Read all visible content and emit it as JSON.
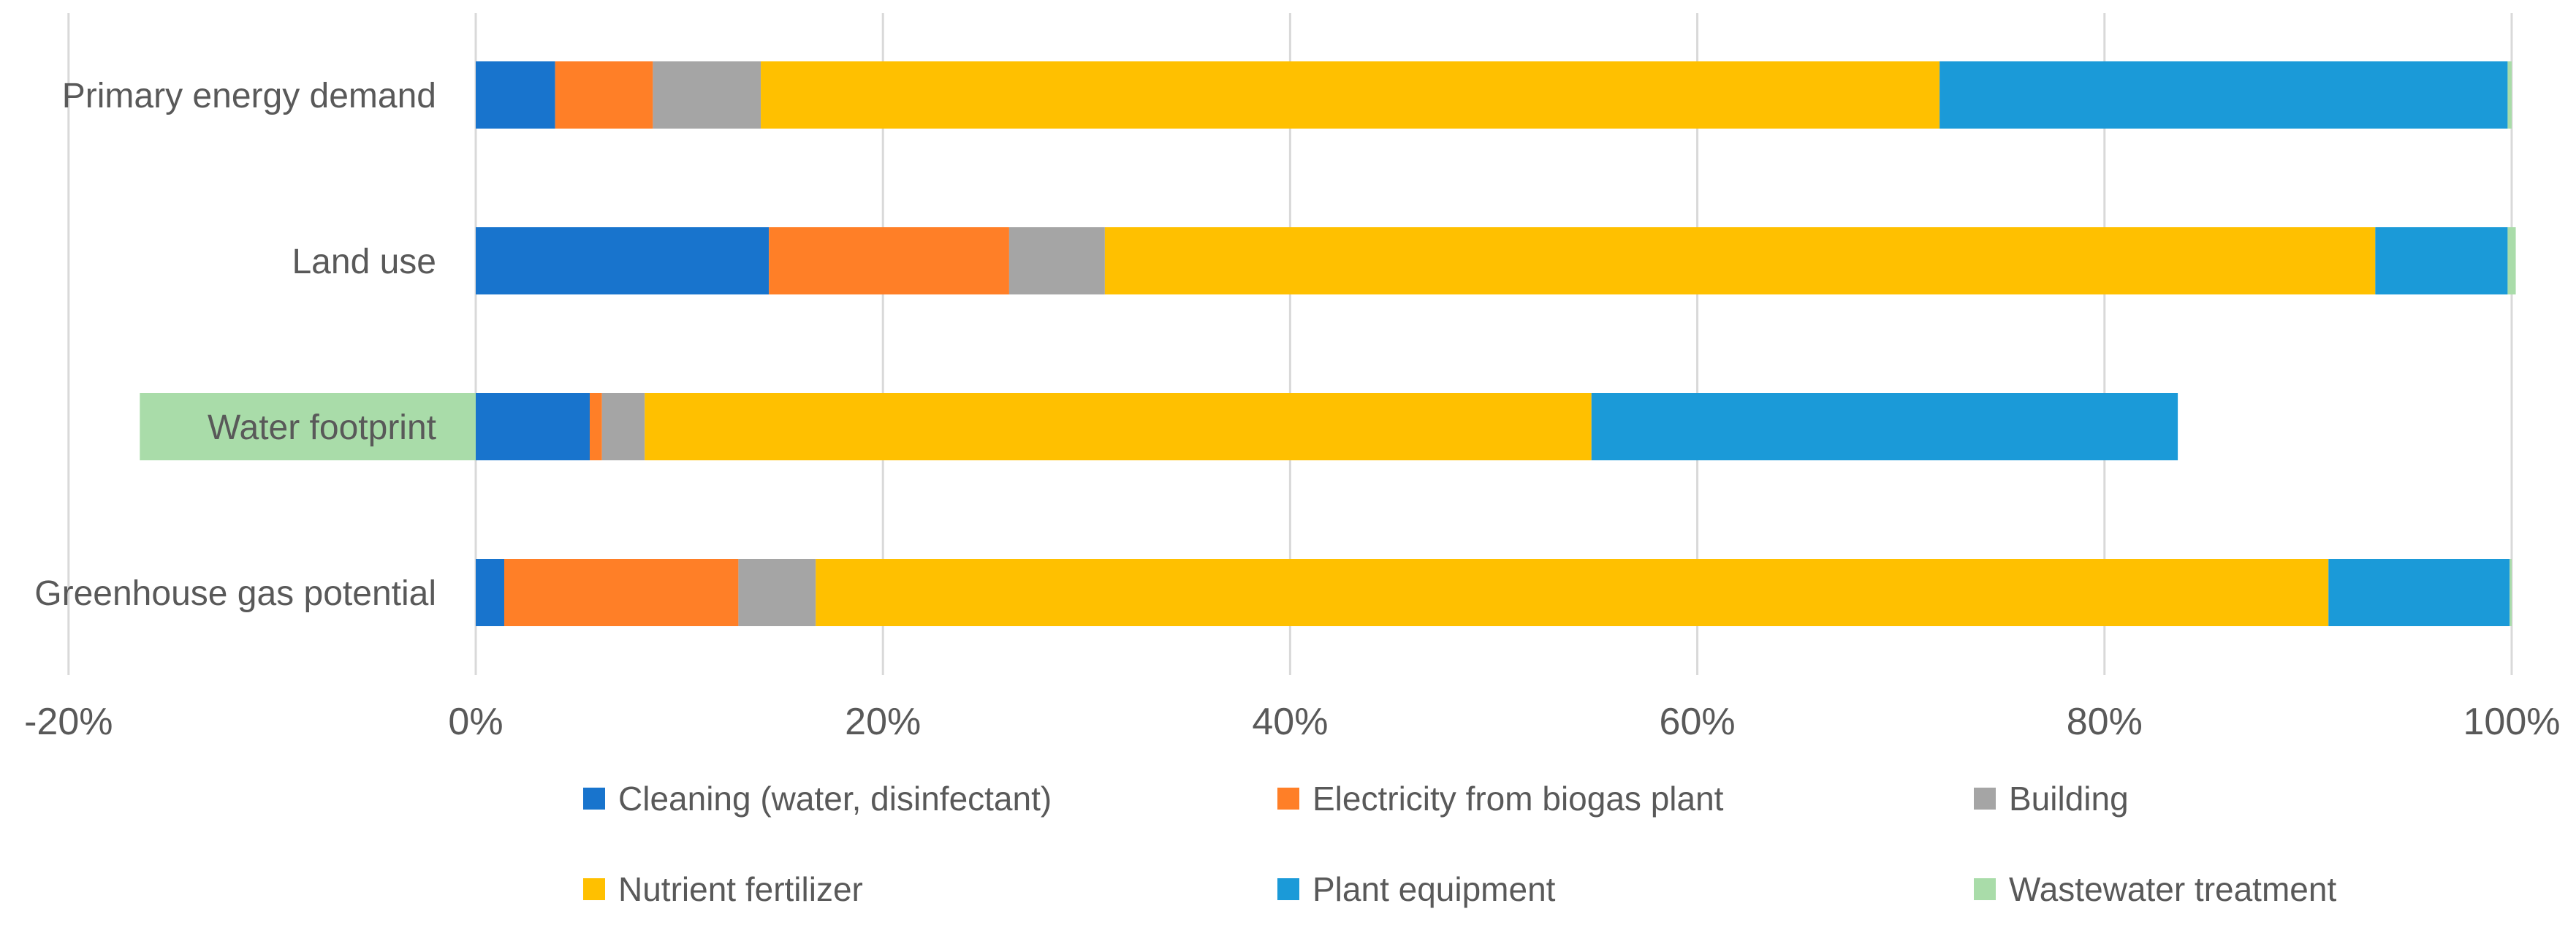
{
  "chart_data": {
    "type": "bar",
    "orientation": "horizontal",
    "stacked": true,
    "title": "",
    "xlabel": "",
    "ylabel": "",
    "xlim": [
      -20,
      100
    ],
    "x_ticks": [
      -20,
      0,
      20,
      40,
      60,
      80,
      100
    ],
    "x_tick_labels": [
      "-20%",
      "0%",
      "20%",
      "40%",
      "60%",
      "80%",
      "100%"
    ],
    "grid": "vertical",
    "legend_position": "bottom",
    "categories": [
      "Primary energy demand",
      "Land use",
      "Water footprint",
      "Greenhouse gas potential"
    ],
    "series": [
      {
        "name": "Cleaning (water, disinfectant)",
        "color": "#1874CD",
        "values": [
          3.9,
          14.4,
          5.6,
          1.4
        ]
      },
      {
        "name": "Electricity from biogas plant",
        "color": "#FF7F27",
        "values": [
          4.8,
          11.8,
          0.6,
          11.5
        ]
      },
      {
        "name": "Building",
        "color": "#A5A5A5",
        "values": [
          5.3,
          4.7,
          2.1,
          3.8
        ]
      },
      {
        "name": "Nutrient fertilizer",
        "color": "#FFC000",
        "values": [
          57.9,
          62.4,
          46.5,
          74.3
        ]
      },
      {
        "name": "Plant equipment",
        "color": "#1B9AD8",
        "values": [
          27.9,
          6.5,
          28.8,
          8.9
        ]
      },
      {
        "name": "Wastewater treatment",
        "color": "#A9DCA9",
        "values": [
          0.2,
          0.4,
          -16.5,
          0.1
        ]
      }
    ]
  }
}
